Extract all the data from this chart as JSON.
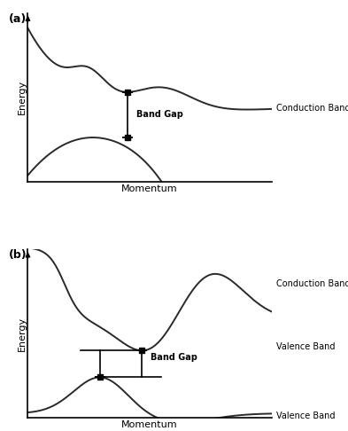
{
  "title_a": "(a)",
  "title_b": "(b)",
  "xlabel": "Momentum",
  "ylabel": "Energy",
  "conduction_band_label": "Conduction Band",
  "valence_band_label": "Valence Band",
  "band_gap_label": "Band Gap",
  "bg_color": "#ffffff",
  "curve_color": "#2a2a2a",
  "annotation_color": "#000000",
  "figsize": [
    3.93,
    4.86
  ],
  "dpi": 100
}
